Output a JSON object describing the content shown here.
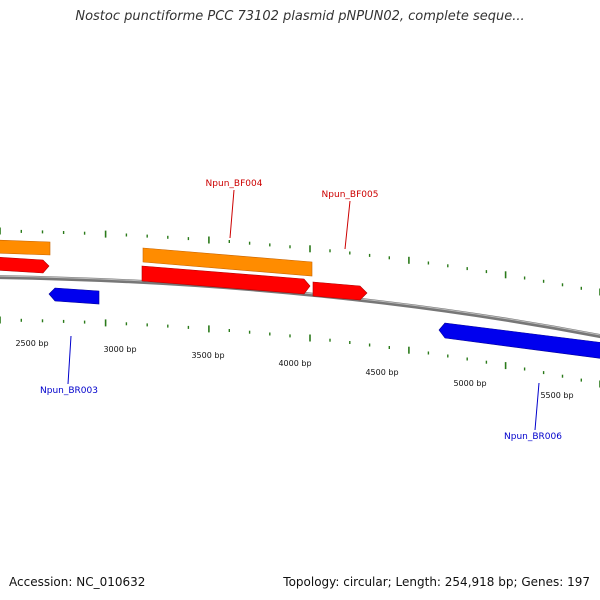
{
  "header": {
    "title": "Nostoc punctiforme PCC 73102 plasmid pNPUN02, complete seque..."
  },
  "footer": {
    "accession": "Accession: NC_010632",
    "topology": "Topology: circular; Length: 254,918 bp; Genes: 197"
  },
  "colors": {
    "backbone": "#888888",
    "tick": "#2a7a1a",
    "forward_gene_a": "#ff8c00",
    "forward_gene_b": "#ff0000",
    "reverse_gene": "#0000ee",
    "forward_label": "#cc0000",
    "reverse_label": "#0000cc"
  },
  "scale": {
    "ticks": [
      {
        "label": "2500 bp"
      },
      {
        "label": "3000 bp"
      },
      {
        "label": "3500 bp"
      },
      {
        "label": "4000 bp"
      },
      {
        "label": "4500 bp"
      },
      {
        "label": "5000 bp"
      },
      {
        "label": "5500 bp"
      }
    ]
  },
  "genes": {
    "labels": [
      {
        "name": "Npun_BF004",
        "strand": "forward"
      },
      {
        "name": "Npun_BF005",
        "strand": "forward"
      },
      {
        "name": "Npun_BR003",
        "strand": "reverse"
      },
      {
        "name": "Npun_BR006",
        "strand": "reverse"
      }
    ]
  }
}
